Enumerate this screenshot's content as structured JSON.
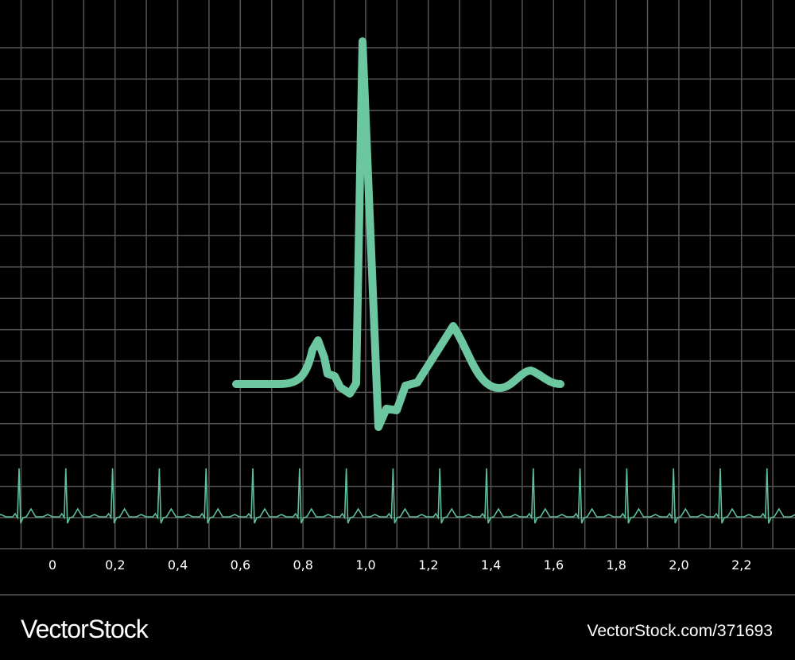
{
  "axis": {
    "ticks": [
      "0",
      "0,2",
      "0,4",
      "0,6",
      "0,8",
      "1,0",
      "1,2",
      "1,4",
      "1,6",
      "1,8",
      "2,0",
      "2,2"
    ]
  },
  "footer": {
    "brand": "VectorStock",
    "id": "VectorStock.com/371693"
  }
}
